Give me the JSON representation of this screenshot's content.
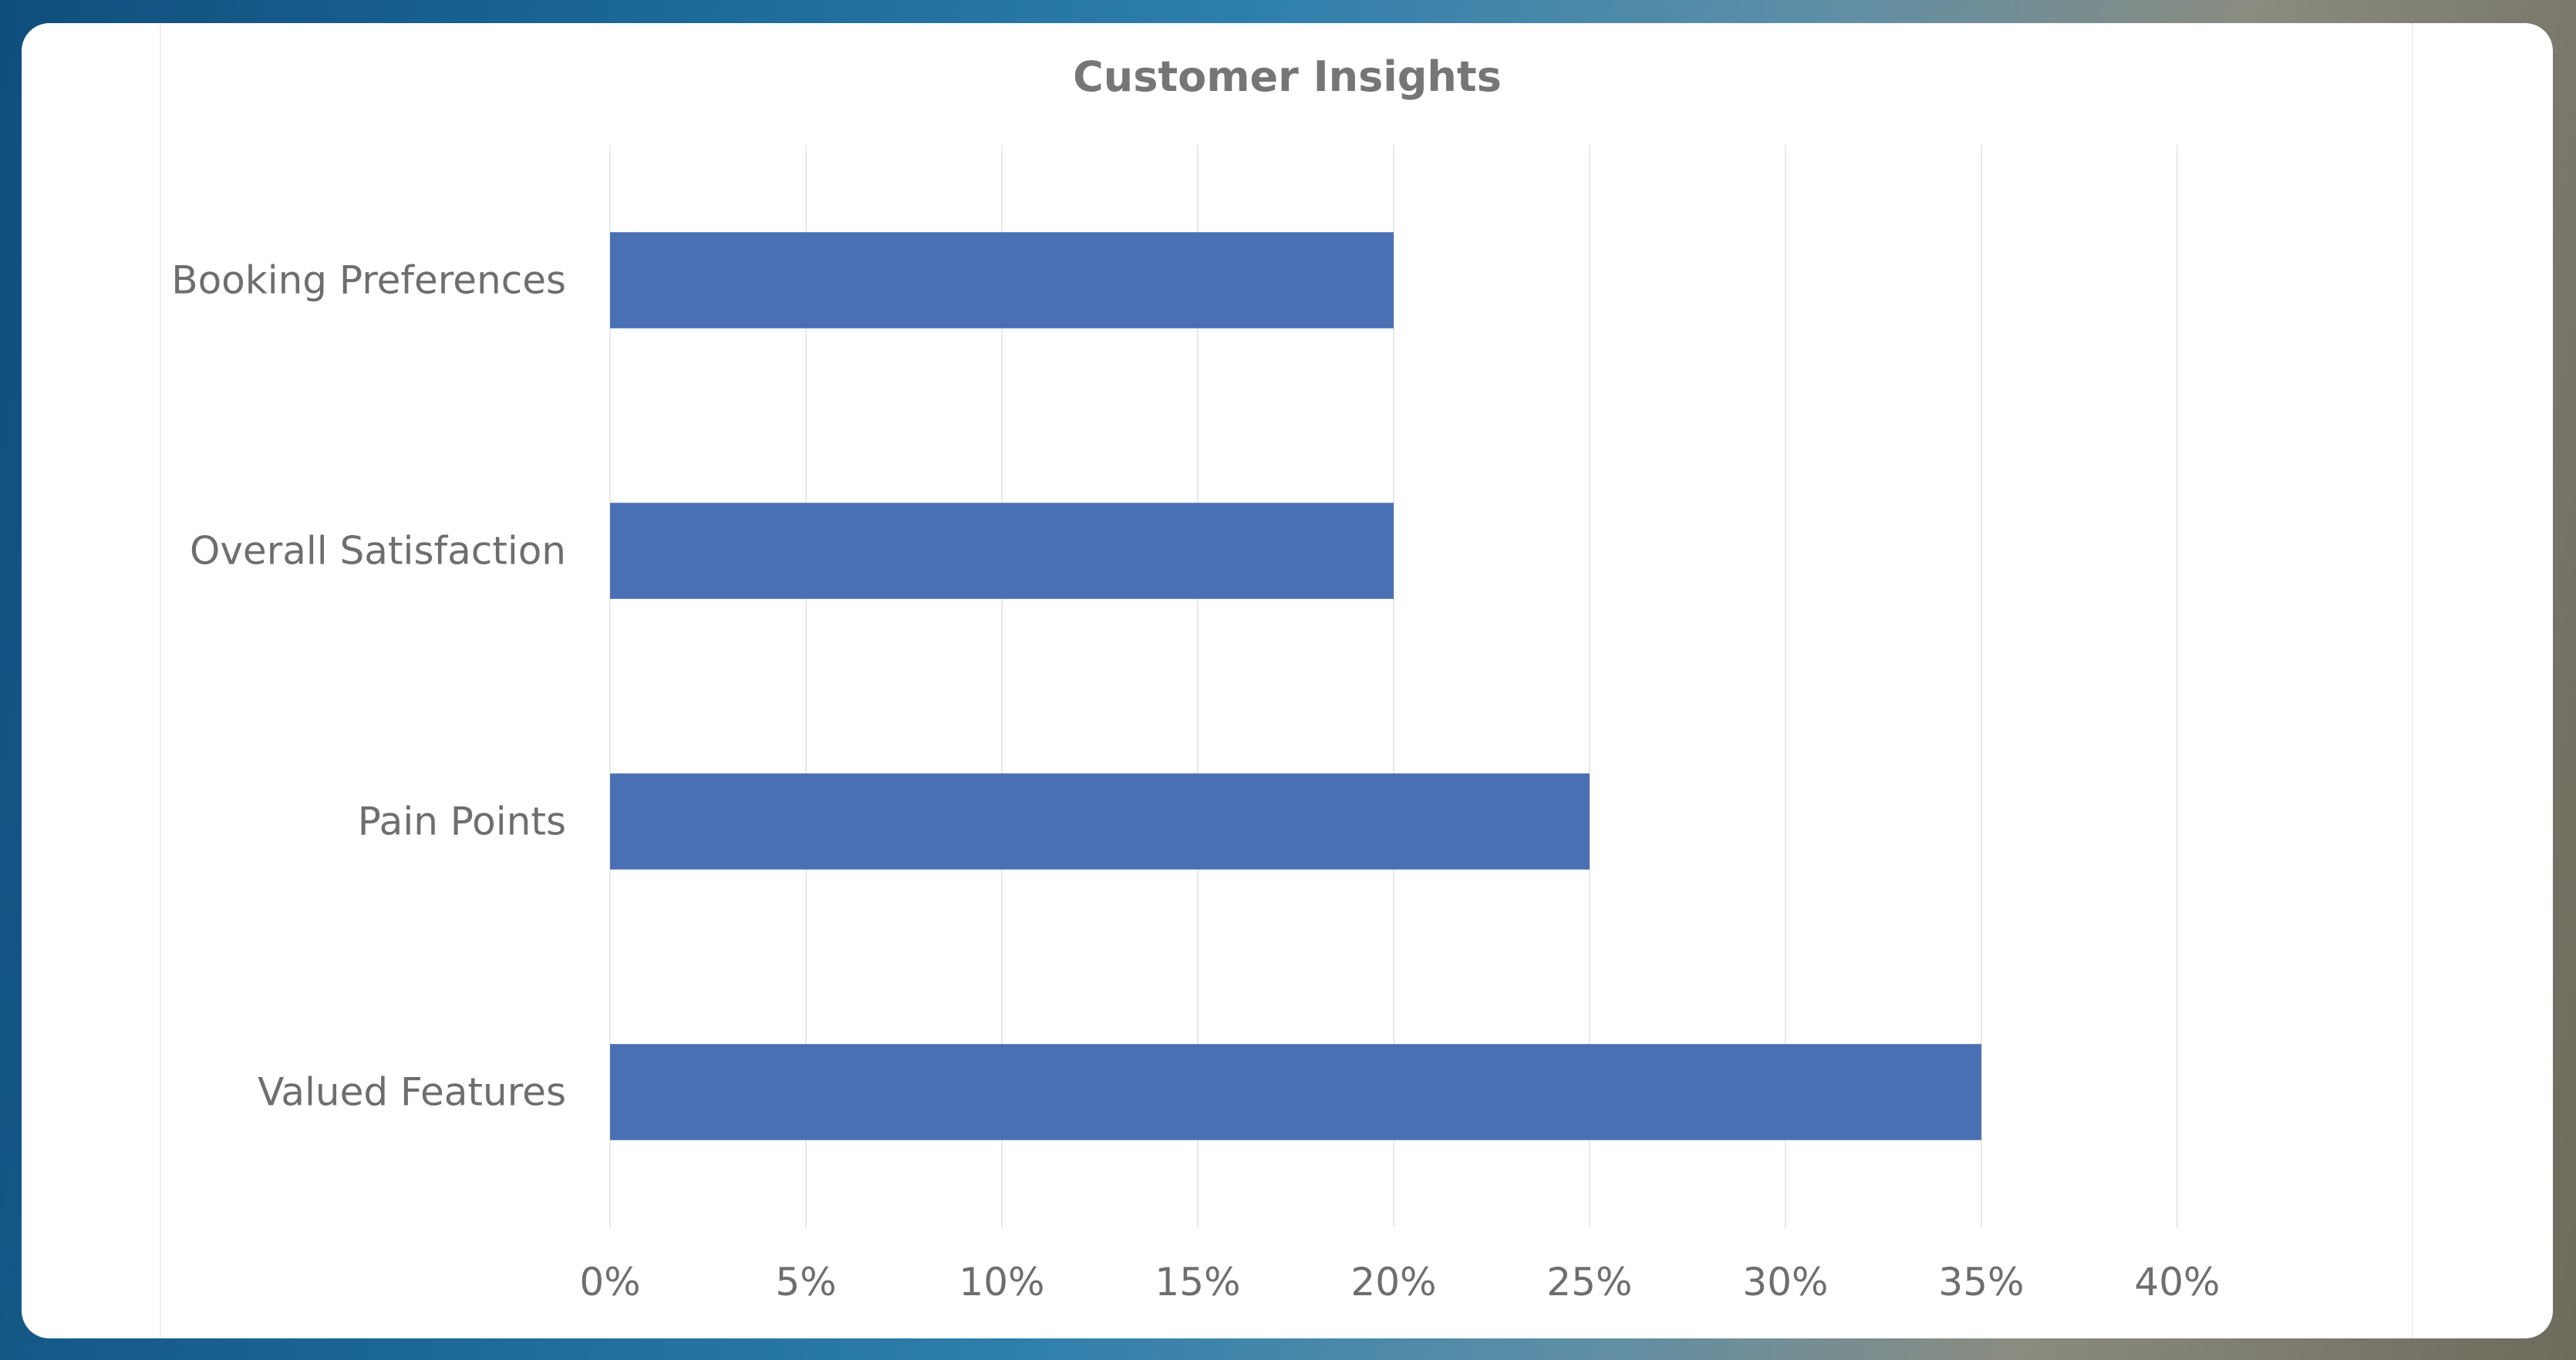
{
  "chart_data": {
    "type": "bar",
    "orientation": "horizontal",
    "title": "Customer Insights",
    "categories": [
      "Booking Preferences",
      "Overall Satisfaction",
      "Pain Points",
      "Valued Features"
    ],
    "values": [
      20,
      20,
      25,
      35
    ],
    "value_format": "percent",
    "xlim": [
      0,
      40
    ],
    "x_ticks": [
      "0%",
      "5%",
      "10%",
      "15%",
      "20%",
      "25%",
      "30%",
      "35%",
      "40%"
    ],
    "grid": "vertical",
    "legend": "none",
    "bar_color": "#4a70b4",
    "gridline_color": "#e9e9e9"
  }
}
